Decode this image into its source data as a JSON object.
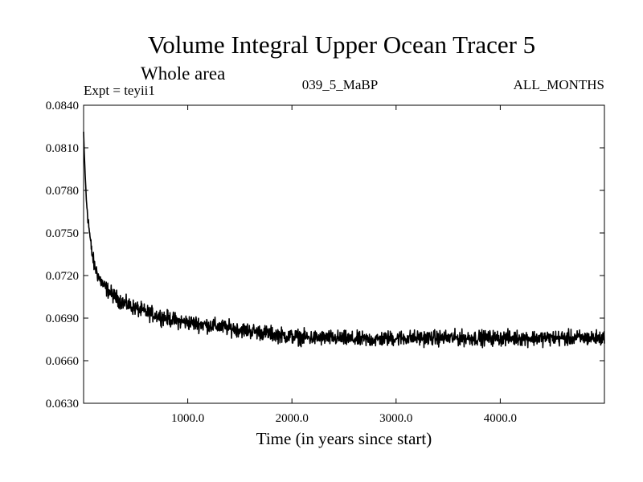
{
  "chart_data": {
    "type": "line",
    "title": "Volume Integral Upper Ocean Tracer 5",
    "subtitle": "Whole area",
    "expt_label": "Expt = teyii1",
    "run_label": "039_5_MaBP",
    "period_label": "ALL_MONTHS",
    "xlabel": "Time (in years since start)",
    "ylabel": "",
    "xlim": [
      0,
      5000
    ],
    "ylim": [
      0.063,
      0.084
    ],
    "x_ticks": [
      1000,
      2000,
      3000,
      4000
    ],
    "x_tick_labels": [
      "1000.0",
      "2000.0",
      "3000.0",
      "4000.0"
    ],
    "y_ticks": [
      0.063,
      0.066,
      0.069,
      0.072,
      0.075,
      0.078,
      0.081,
      0.084
    ],
    "y_tick_labels": [
      "0.0630",
      "0.0660",
      "0.0690",
      "0.0720",
      "0.0750",
      "0.0780",
      "0.0810",
      "0.0840"
    ],
    "grid": false,
    "line_color": "#000000",
    "series": [
      {
        "name": "tracer5",
        "x": [
          0,
          10,
          25,
          50,
          75,
          100,
          150,
          200,
          300,
          400,
          500,
          600,
          700,
          800,
          900,
          1000,
          1200,
          1400,
          1600,
          1800,
          2000,
          2200,
          2400,
          2600,
          2800,
          3000,
          3200,
          3400,
          3600,
          3800,
          4000,
          4200,
          4400,
          4600,
          4800,
          5000
        ],
        "y": [
          0.082,
          0.08,
          0.0775,
          0.0755,
          0.0738,
          0.0728,
          0.0718,
          0.0712,
          0.0705,
          0.07,
          0.0697,
          0.0694,
          0.0692,
          0.069,
          0.0688,
          0.0687,
          0.0685,
          0.0683,
          0.0681,
          0.0679,
          0.0677,
          0.0676,
          0.0676,
          0.0675,
          0.0675,
          0.0676,
          0.0676,
          0.0676,
          0.0676,
          0.0676,
          0.0676,
          0.0676,
          0.0676,
          0.0676,
          0.0676,
          0.0676
        ],
        "noise_amplitude": 0.0008
      }
    ]
  }
}
